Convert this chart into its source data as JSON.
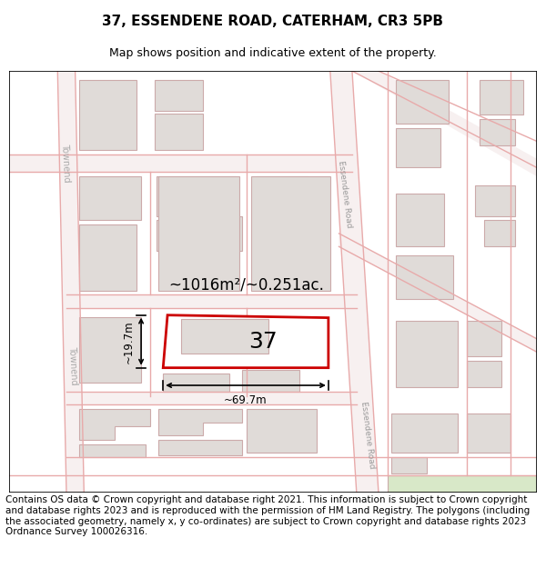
{
  "title": "37, ESSENDENE ROAD, CATERHAM, CR3 5PB",
  "subtitle": "Map shows position and indicative extent of the property.",
  "footer": "Contains OS data © Crown copyright and database right 2021. This information is subject to Crown copyright and database rights 2023 and is reproduced with the permission of HM Land Registry. The polygons (including the associated geometry, namely x, y co-ordinates) are subject to Crown copyright and database rights 2023 Ordnance Survey 100026316.",
  "map_bg": "#ffffff",
  "road_line_color": "#e8aaaa",
  "road_fill": "#f7f0f0",
  "building_fill": "#e0dbd8",
  "building_edge": "#ccaaaa",
  "highlight_fill": "#ffffff",
  "highlight_outline": "#cc0000",
  "dim_color": "#000000",
  "label_37": "37",
  "area_label": "~1016m²/~0.251ac.",
  "width_label": "~69.7m",
  "height_label": "~19.7m",
  "road_label_ess": "Essendene Road",
  "road_label_town": "Townend",
  "title_fontsize": 11,
  "subtitle_fontsize": 9,
  "footer_fontsize": 7.5
}
